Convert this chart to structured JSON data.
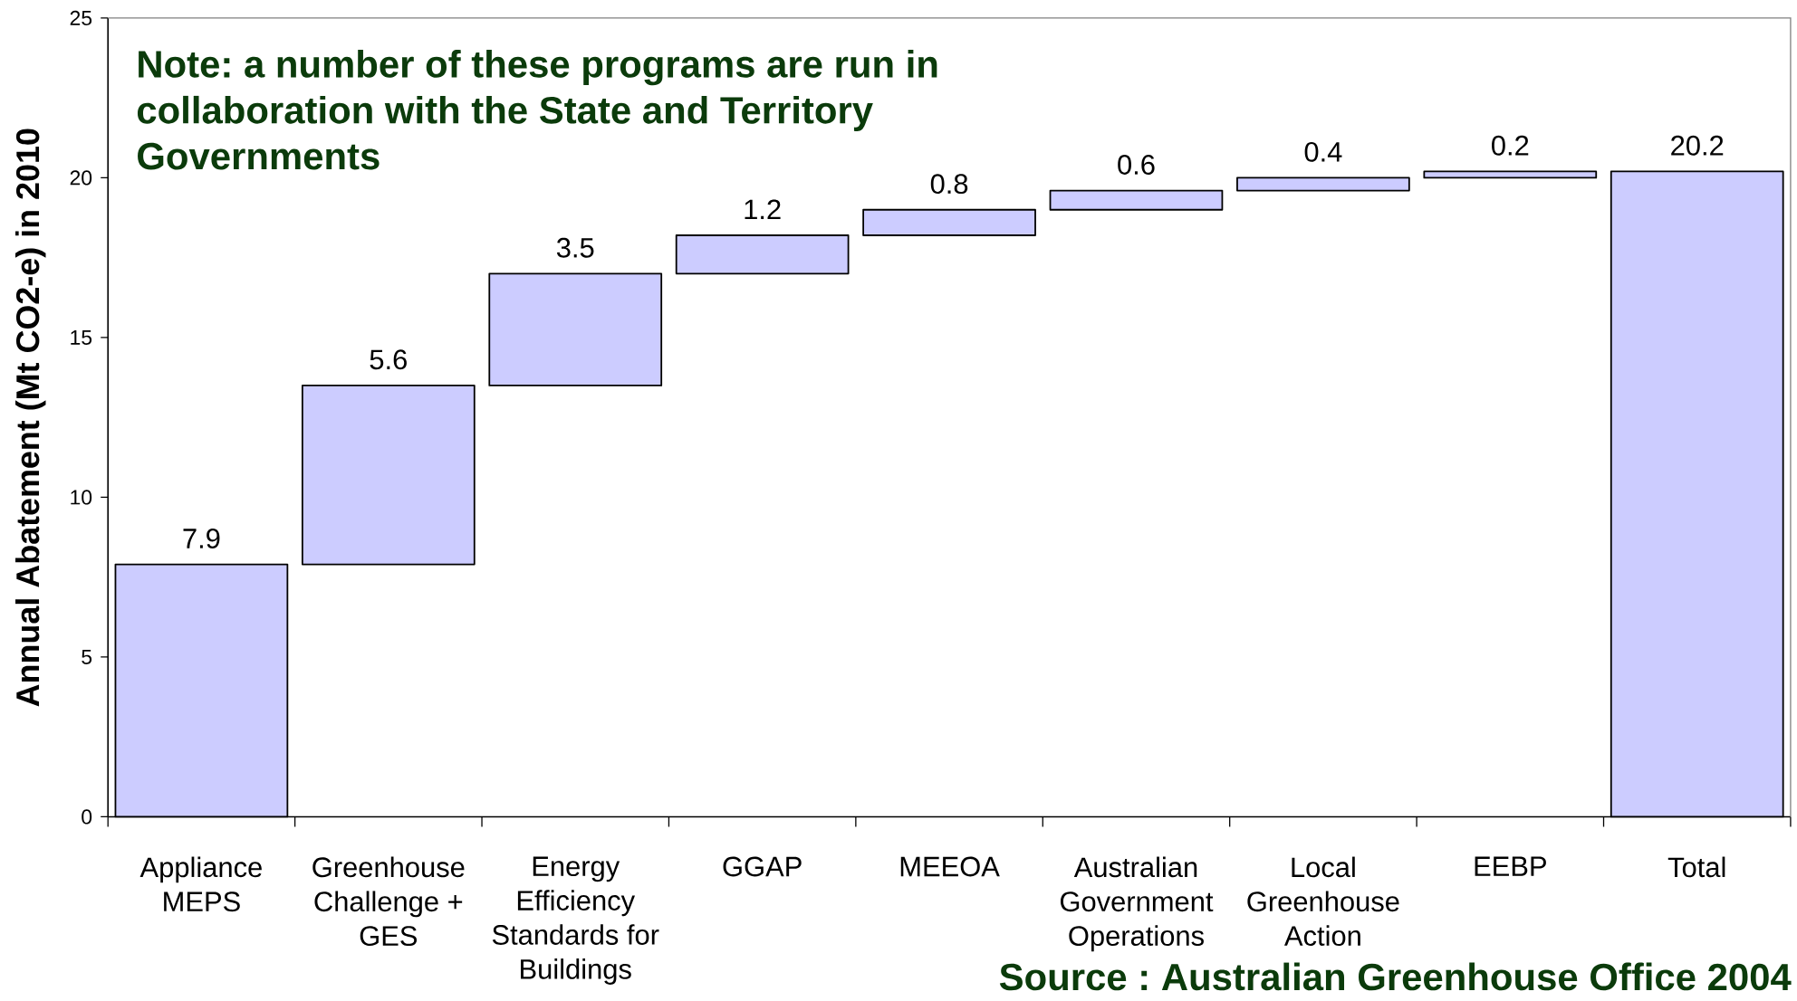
{
  "chart_data": {
    "type": "bar",
    "ylabel": "Annual Abatement (Mt CO2-e) in 2010",
    "annotations": [
      "Note: a number of these programs are run in collaboration with the State and Territory Governments",
      "Source : Australian Greenhouse Office 2004"
    ],
    "categories": [
      "Appliance MEPS",
      "Greenhouse Challenge + GES",
      "Energy Efficiency Standards for Buildings",
      "GGAP",
      "MEEOA",
      "Australian Government Operations",
      "Local Greenhouse Action",
      "EEBP",
      "Total"
    ],
    "values": [
      7.9,
      5.6,
      3.5,
      1.2,
      0.8,
      0.6,
      0.4,
      0.2,
      20.2
    ],
    "base": [
      0,
      7.9,
      13.5,
      17.0,
      18.2,
      19.0,
      19.6,
      20.0,
      0
    ],
    "color": "#ccccff",
    "ylim": [
      0,
      25
    ],
    "yticks": [
      0,
      5,
      10,
      15,
      20,
      25
    ],
    "data_labels": true
  }
}
